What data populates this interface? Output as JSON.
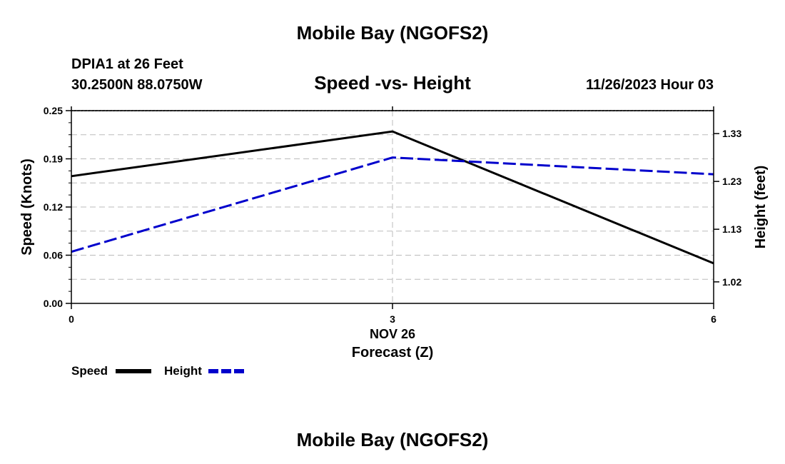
{
  "page": {
    "title_top": "Mobile Bay (NGOFS2)",
    "title_bottom": "Mobile Bay (NGOFS2)",
    "station_line1": "DPIA1 at 26 Feet",
    "station_line2": "30.2500N  88.0750W",
    "timestamp": "11/26/2023 Hour 03"
  },
  "colors": {
    "speed": "#000000",
    "height": "#0000cc",
    "grid": "#bbbbbb"
  },
  "chart_data": {
    "type": "line",
    "title": "Speed -vs- Height",
    "xlabel": "Forecast (Z)",
    "x_date_label": "NOV 26",
    "ylabel": "Speed (Knots)",
    "y2label": "Height (feet)",
    "x": [
      0,
      3,
      6
    ],
    "xlim": [
      0,
      6
    ],
    "ylim": [
      0,
      0.25
    ],
    "y2lim": [
      0.975,
      1.378
    ],
    "xticks": [
      "0",
      "3",
      "6"
    ],
    "yticks": [
      "0.00",
      "0.06",
      "0.12",
      "0.19",
      "0.25"
    ],
    "y2ticks": [
      "1.02",
      "1.13",
      "1.23",
      "1.33"
    ],
    "series": [
      {
        "name": "Speed",
        "axis": "left",
        "values": [
          0.165,
          0.223,
          0.052
        ]
      },
      {
        "name": "Height",
        "axis": "right",
        "values": [
          1.083,
          1.28,
          1.245
        ]
      }
    ],
    "legend": [
      "Speed",
      "Height"
    ],
    "legend_position": "bottom-left"
  }
}
